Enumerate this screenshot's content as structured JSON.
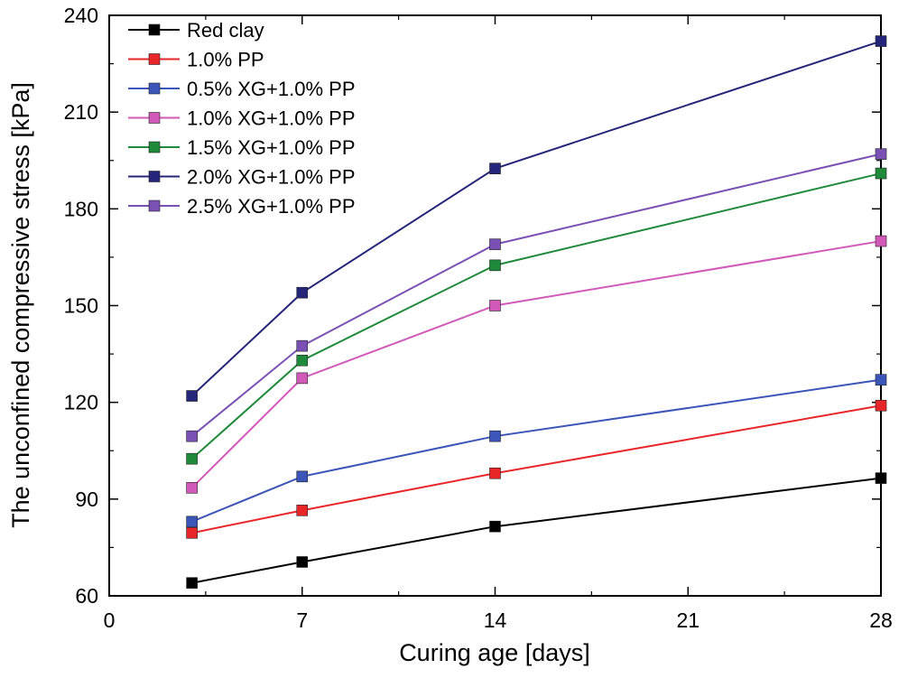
{
  "chart_data": {
    "type": "line",
    "title": "",
    "xlabel": "Curing age [days]",
    "ylabel": "The unconfined compressive stress [kPa]",
    "xlim": [
      0,
      28
    ],
    "ylim": [
      60,
      240
    ],
    "xticks": [
      0,
      7,
      14,
      21,
      28
    ],
    "yticks": [
      60,
      90,
      120,
      150,
      180,
      210,
      240
    ],
    "x": [
      3,
      7,
      14,
      28
    ],
    "legend_position": "top-left",
    "grid": false,
    "series": [
      {
        "name": "Red clay",
        "color": "#000000",
        "values": [
          64,
          70.5,
          81.5,
          96.5
        ]
      },
      {
        "name": "1.0% PP",
        "color": "#e8262a",
        "values": [
          79.5,
          86.5,
          98,
          119
        ]
      },
      {
        "name": "0.5% XG+1.0% PP",
        "color": "#3b55b8",
        "values": [
          83,
          97,
          109.5,
          127
        ]
      },
      {
        "name": "1.0% XG+1.0% PP",
        "color": "#d15ab8",
        "values": [
          93.5,
          127.5,
          150,
          170
        ]
      },
      {
        "name": "1.5% XG+1.0% PP",
        "color": "#1e8a3a",
        "values": [
          102.5,
          133,
          162.5,
          191
        ]
      },
      {
        "name": "2.0% XG+1.0% PP",
        "color": "#25267a",
        "values": [
          122,
          154,
          192.5,
          232
        ]
      },
      {
        "name": "2.5% XG+1.0% PP",
        "color": "#7b50b5",
        "values": [
          109.5,
          137.5,
          169,
          197
        ]
      }
    ]
  }
}
